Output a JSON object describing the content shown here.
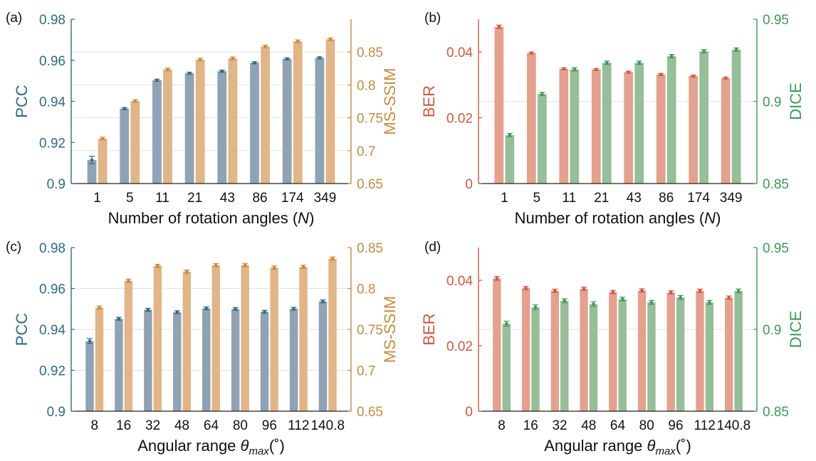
{
  "chart_data": [
    {
      "panel": "(a)",
      "type": "bar",
      "xlabel_text": "Number of rotation angles (",
      "xlabel_var": "N",
      "xlabel_end": ")",
      "categories": [
        "1",
        "5",
        "11",
        "21",
        "43",
        "86",
        "174",
        "349"
      ],
      "y_left": {
        "label": "PCC",
        "range": [
          0.9,
          0.98
        ],
        "ticks": [
          "0.9",
          "0.92",
          "0.94",
          "0.96",
          "0.98"
        ],
        "color": "#2e6b86"
      },
      "y_right": {
        "label": "MS-SSIM",
        "range": [
          0.65,
          0.9
        ],
        "ticks": [
          "0.65",
          "0.7",
          "0.75",
          "0.8",
          "0.85"
        ],
        "color": "#c98a3b"
      },
      "grid": true,
      "series": [
        {
          "name": "PCC",
          "axis": "left",
          "color": "#8fa3b5",
          "values": [
            0.9115,
            0.9365,
            0.9503,
            0.9537,
            0.9547,
            0.9588,
            0.9607,
            0.9612
          ],
          "errors": [
            0.0018,
            0.0005,
            0.0005,
            0.0005,
            0.0005,
            0.0005,
            0.0005,
            0.0005
          ]
        },
        {
          "name": "MS-SSIM",
          "axis": "right",
          "color": "#e2b587",
          "values": [
            0.7185,
            0.7755,
            0.8235,
            0.8385,
            0.8405,
            0.8585,
            0.8665,
            0.8695
          ],
          "errors": [
            0.002,
            0.002,
            0.002,
            0.002,
            0.002,
            0.002,
            0.002,
            0.002
          ]
        }
      ]
    },
    {
      "panel": "(b)",
      "type": "bar",
      "xlabel_text": "Number of rotation angles (",
      "xlabel_var": "N",
      "xlabel_end": ")",
      "categories": [
        "1",
        "5",
        "11",
        "21",
        "43",
        "86",
        "174",
        "349"
      ],
      "y_left": {
        "label": "BER",
        "range": [
          0,
          0.05
        ],
        "ticks": [
          "0",
          "0.02",
          "0.04"
        ],
        "tick_values": [
          0,
          0.02,
          0.04
        ],
        "color": "#d0573f"
      },
      "y_right": {
        "label": "DICE",
        "range": [
          0.85,
          0.95
        ],
        "ticks": [
          "0.85",
          "0.9",
          "0.95"
        ],
        "tick_values": [
          0.85,
          0.9,
          0.95
        ],
        "color": "#3a9a57"
      },
      "grid": true,
      "series": [
        {
          "name": "BER",
          "axis": "left",
          "color": "#e5a08e",
          "values": [
            0.0477,
            0.0397,
            0.0349,
            0.0347,
            0.0339,
            0.0332,
            0.0327,
            0.0321
          ],
          "errors": [
            0.0005,
            0.0003,
            0.0003,
            0.0003,
            0.0003,
            0.0003,
            0.0003,
            0.0003
          ]
        },
        {
          "name": "DICE",
          "axis": "right",
          "color": "#94bf98",
          "values": [
            0.8795,
            0.9045,
            0.9195,
            0.9235,
            0.9235,
            0.9275,
            0.9305,
            0.9315
          ],
          "errors": [
            0.001,
            0.001,
            0.001,
            0.001,
            0.001,
            0.001,
            0.001,
            0.001
          ]
        }
      ]
    },
    {
      "panel": "(c)",
      "type": "bar",
      "xlabel_text": "Angular range ",
      "xlabel_var": "θ",
      "xlabel_sub": "max",
      "xlabel_end": "(˚)",
      "categories": [
        "8",
        "16",
        "32",
        "48",
        "64",
        "80",
        "96",
        "112",
        "140.8"
      ],
      "y_left": {
        "label": "PCC",
        "range": [
          0.9,
          0.98
        ],
        "ticks": [
          "0.9",
          "0.92",
          "0.94",
          "0.96",
          "0.98"
        ],
        "color": "#2e6b86"
      },
      "y_right": {
        "label": "MS-SSIM",
        "range": [
          0.65,
          0.85
        ],
        "ticks": [
          "0.65",
          "0.7",
          "0.75",
          "0.8",
          "0.85"
        ],
        "color": "#c98a3b"
      },
      "grid": true,
      "series": [
        {
          "name": "PCC",
          "axis": "left",
          "color": "#8fa3b5",
          "values": [
            0.9343,
            0.9452,
            0.9496,
            0.9484,
            0.9503,
            0.95,
            0.9486,
            0.9501,
            0.9537
          ],
          "errors": [
            0.0012,
            0.0007,
            0.0007,
            0.0007,
            0.0007,
            0.0007,
            0.0007,
            0.0007,
            0.0007
          ]
        },
        {
          "name": "MS-SSIM",
          "axis": "right",
          "color": "#e2b587",
          "values": [
            0.7765,
            0.8095,
            0.8275,
            0.8205,
            0.8285,
            0.8285,
            0.8255,
            0.8265,
            0.8365
          ],
          "errors": [
            0.002,
            0.002,
            0.002,
            0.002,
            0.002,
            0.002,
            0.002,
            0.002,
            0.002
          ]
        }
      ]
    },
    {
      "panel": "(d)",
      "type": "bar",
      "xlabel_text": "Angular range ",
      "xlabel_var": "θ",
      "xlabel_sub": "max",
      "xlabel_end": "(˚)",
      "categories": [
        "8",
        "16",
        "32",
        "48",
        "64",
        "80",
        "96",
        "112",
        "140.8"
      ],
      "y_left": {
        "label": "BER",
        "range": [
          0,
          0.05
        ],
        "ticks": [
          "0",
          "0.02",
          "0.04"
        ],
        "tick_values": [
          0,
          0.02,
          0.04
        ],
        "color": "#d0573f"
      },
      "y_right": {
        "label": "DICE",
        "range": [
          0.85,
          0.95
        ],
        "ticks": [
          "0.85",
          "0.9",
          "0.95"
        ],
        "tick_values": [
          0.85,
          0.9,
          0.95
        ],
        "color": "#3a9a57"
      },
      "grid": true,
      "series": [
        {
          "name": "BER",
          "axis": "left",
          "color": "#e5a08e",
          "values": [
            0.0406,
            0.0376,
            0.0368,
            0.0374,
            0.0364,
            0.0369,
            0.0363,
            0.0368,
            0.0347
          ],
          "errors": [
            0.0006,
            0.0005,
            0.0005,
            0.0005,
            0.0005,
            0.0005,
            0.0005,
            0.0005,
            0.0005
          ]
        },
        {
          "name": "DICE",
          "axis": "right",
          "color": "#94bf98",
          "values": [
            0.9035,
            0.9135,
            0.9175,
            0.9155,
            0.9185,
            0.9165,
            0.9195,
            0.9165,
            0.9235
          ],
          "errors": [
            0.0015,
            0.0015,
            0.0012,
            0.0015,
            0.0012,
            0.0012,
            0.0012,
            0.0012,
            0.0012
          ]
        }
      ]
    }
  ]
}
